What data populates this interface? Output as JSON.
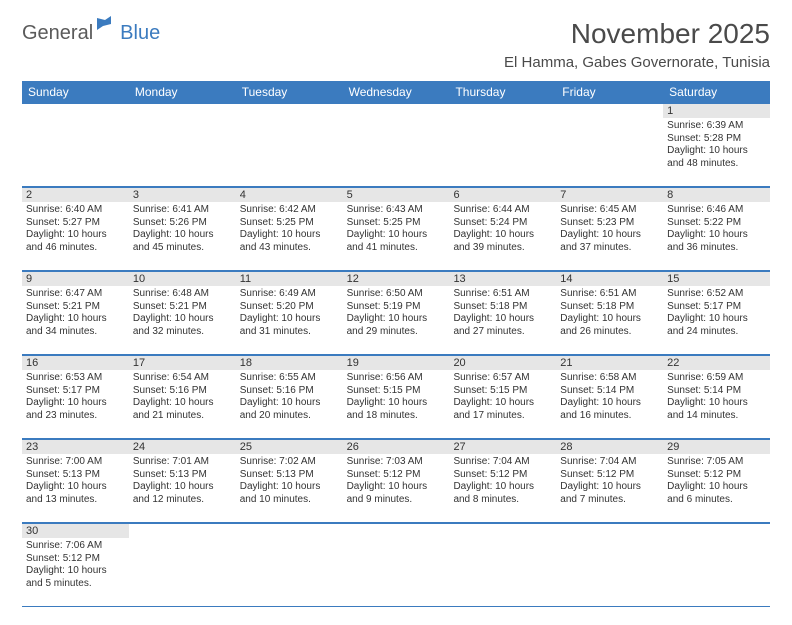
{
  "logo": {
    "text1": "General",
    "text2": "Blue"
  },
  "title": "November 2025",
  "location": "El Hamma, Gabes Governorate, Tunisia",
  "colors": {
    "header_bg": "#3b7bbf",
    "header_text": "#ffffff",
    "daynum_bg": "#e6e6e6",
    "border": "#3b7bbf",
    "text": "#333333",
    "logo_gray": "#5a5a5a",
    "logo_blue": "#3b7bbf",
    "background": "#ffffff"
  },
  "weekdays": [
    "Sunday",
    "Monday",
    "Tuesday",
    "Wednesday",
    "Thursday",
    "Friday",
    "Saturday"
  ],
  "weeks": [
    [
      {
        "n": "",
        "sr": "",
        "ss": "",
        "dl": ""
      },
      {
        "n": "",
        "sr": "",
        "ss": "",
        "dl": ""
      },
      {
        "n": "",
        "sr": "",
        "ss": "",
        "dl": ""
      },
      {
        "n": "",
        "sr": "",
        "ss": "",
        "dl": ""
      },
      {
        "n": "",
        "sr": "",
        "ss": "",
        "dl": ""
      },
      {
        "n": "",
        "sr": "",
        "ss": "",
        "dl": ""
      },
      {
        "n": "1",
        "sr": "Sunrise: 6:39 AM",
        "ss": "Sunset: 5:28 PM",
        "dl": "Daylight: 10 hours and 48 minutes."
      }
    ],
    [
      {
        "n": "2",
        "sr": "Sunrise: 6:40 AM",
        "ss": "Sunset: 5:27 PM",
        "dl": "Daylight: 10 hours and 46 minutes."
      },
      {
        "n": "3",
        "sr": "Sunrise: 6:41 AM",
        "ss": "Sunset: 5:26 PM",
        "dl": "Daylight: 10 hours and 45 minutes."
      },
      {
        "n": "4",
        "sr": "Sunrise: 6:42 AM",
        "ss": "Sunset: 5:25 PM",
        "dl": "Daylight: 10 hours and 43 minutes."
      },
      {
        "n": "5",
        "sr": "Sunrise: 6:43 AM",
        "ss": "Sunset: 5:25 PM",
        "dl": "Daylight: 10 hours and 41 minutes."
      },
      {
        "n": "6",
        "sr": "Sunrise: 6:44 AM",
        "ss": "Sunset: 5:24 PM",
        "dl": "Daylight: 10 hours and 39 minutes."
      },
      {
        "n": "7",
        "sr": "Sunrise: 6:45 AM",
        "ss": "Sunset: 5:23 PM",
        "dl": "Daylight: 10 hours and 37 minutes."
      },
      {
        "n": "8",
        "sr": "Sunrise: 6:46 AM",
        "ss": "Sunset: 5:22 PM",
        "dl": "Daylight: 10 hours and 36 minutes."
      }
    ],
    [
      {
        "n": "9",
        "sr": "Sunrise: 6:47 AM",
        "ss": "Sunset: 5:21 PM",
        "dl": "Daylight: 10 hours and 34 minutes."
      },
      {
        "n": "10",
        "sr": "Sunrise: 6:48 AM",
        "ss": "Sunset: 5:21 PM",
        "dl": "Daylight: 10 hours and 32 minutes."
      },
      {
        "n": "11",
        "sr": "Sunrise: 6:49 AM",
        "ss": "Sunset: 5:20 PM",
        "dl": "Daylight: 10 hours and 31 minutes."
      },
      {
        "n": "12",
        "sr": "Sunrise: 6:50 AM",
        "ss": "Sunset: 5:19 PM",
        "dl": "Daylight: 10 hours and 29 minutes."
      },
      {
        "n": "13",
        "sr": "Sunrise: 6:51 AM",
        "ss": "Sunset: 5:18 PM",
        "dl": "Daylight: 10 hours and 27 minutes."
      },
      {
        "n": "14",
        "sr": "Sunrise: 6:51 AM",
        "ss": "Sunset: 5:18 PM",
        "dl": "Daylight: 10 hours and 26 minutes."
      },
      {
        "n": "15",
        "sr": "Sunrise: 6:52 AM",
        "ss": "Sunset: 5:17 PM",
        "dl": "Daylight: 10 hours and 24 minutes."
      }
    ],
    [
      {
        "n": "16",
        "sr": "Sunrise: 6:53 AM",
        "ss": "Sunset: 5:17 PM",
        "dl": "Daylight: 10 hours and 23 minutes."
      },
      {
        "n": "17",
        "sr": "Sunrise: 6:54 AM",
        "ss": "Sunset: 5:16 PM",
        "dl": "Daylight: 10 hours and 21 minutes."
      },
      {
        "n": "18",
        "sr": "Sunrise: 6:55 AM",
        "ss": "Sunset: 5:16 PM",
        "dl": "Daylight: 10 hours and 20 minutes."
      },
      {
        "n": "19",
        "sr": "Sunrise: 6:56 AM",
        "ss": "Sunset: 5:15 PM",
        "dl": "Daylight: 10 hours and 18 minutes."
      },
      {
        "n": "20",
        "sr": "Sunrise: 6:57 AM",
        "ss": "Sunset: 5:15 PM",
        "dl": "Daylight: 10 hours and 17 minutes."
      },
      {
        "n": "21",
        "sr": "Sunrise: 6:58 AM",
        "ss": "Sunset: 5:14 PM",
        "dl": "Daylight: 10 hours and 16 minutes."
      },
      {
        "n": "22",
        "sr": "Sunrise: 6:59 AM",
        "ss": "Sunset: 5:14 PM",
        "dl": "Daylight: 10 hours and 14 minutes."
      }
    ],
    [
      {
        "n": "23",
        "sr": "Sunrise: 7:00 AM",
        "ss": "Sunset: 5:13 PM",
        "dl": "Daylight: 10 hours and 13 minutes."
      },
      {
        "n": "24",
        "sr": "Sunrise: 7:01 AM",
        "ss": "Sunset: 5:13 PM",
        "dl": "Daylight: 10 hours and 12 minutes."
      },
      {
        "n": "25",
        "sr": "Sunrise: 7:02 AM",
        "ss": "Sunset: 5:13 PM",
        "dl": "Daylight: 10 hours and 10 minutes."
      },
      {
        "n": "26",
        "sr": "Sunrise: 7:03 AM",
        "ss": "Sunset: 5:12 PM",
        "dl": "Daylight: 10 hours and 9 minutes."
      },
      {
        "n": "27",
        "sr": "Sunrise: 7:04 AM",
        "ss": "Sunset: 5:12 PM",
        "dl": "Daylight: 10 hours and 8 minutes."
      },
      {
        "n": "28",
        "sr": "Sunrise: 7:04 AM",
        "ss": "Sunset: 5:12 PM",
        "dl": "Daylight: 10 hours and 7 minutes."
      },
      {
        "n": "29",
        "sr": "Sunrise: 7:05 AM",
        "ss": "Sunset: 5:12 PM",
        "dl": "Daylight: 10 hours and 6 minutes."
      }
    ],
    [
      {
        "n": "30",
        "sr": "Sunrise: 7:06 AM",
        "ss": "Sunset: 5:12 PM",
        "dl": "Daylight: 10 hours and 5 minutes."
      },
      {
        "n": "",
        "sr": "",
        "ss": "",
        "dl": ""
      },
      {
        "n": "",
        "sr": "",
        "ss": "",
        "dl": ""
      },
      {
        "n": "",
        "sr": "",
        "ss": "",
        "dl": ""
      },
      {
        "n": "",
        "sr": "",
        "ss": "",
        "dl": ""
      },
      {
        "n": "",
        "sr": "",
        "ss": "",
        "dl": ""
      },
      {
        "n": "",
        "sr": "",
        "ss": "",
        "dl": ""
      }
    ]
  ]
}
